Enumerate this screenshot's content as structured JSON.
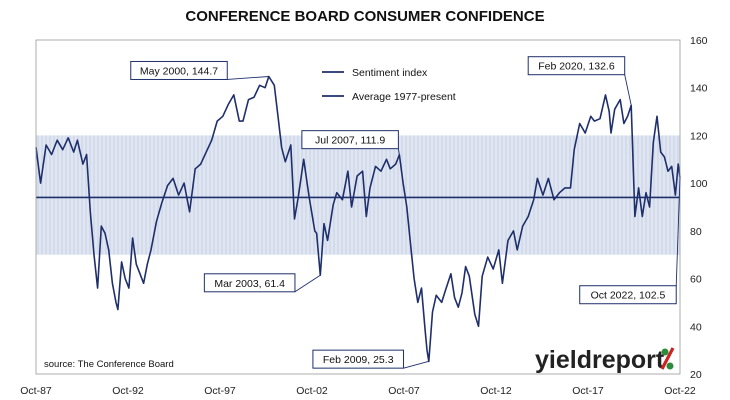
{
  "chart_data": {
    "type": "line",
    "title": "CONFERENCE BOARD CONSUMER CONFIDENCE",
    "ylim": [
      20,
      160
    ],
    "yticks": [
      20,
      40,
      60,
      80,
      100,
      120,
      140,
      160
    ],
    "x_range": [
      "1987-10",
      "2022-10"
    ],
    "xticks": [
      {
        "label": "Oct-87",
        "date": 1987.75
      },
      {
        "label": "Oct-92",
        "date": 1992.75
      },
      {
        "label": "Oct-97",
        "date": 1997.75
      },
      {
        "label": "Oct-02",
        "date": 2002.75
      },
      {
        "label": "Oct-07",
        "date": 2007.75
      },
      {
        "label": "Oct-12",
        "date": 2012.75
      },
      {
        "label": "Oct-17",
        "date": 2017.75
      },
      {
        "label": "Oct-22",
        "date": 2022.75
      }
    ],
    "band": {
      "low": 70,
      "high": 120,
      "color": "#dfe6f2"
    },
    "series": [
      {
        "name": "Sentiment index",
        "color": "#1f2f6b",
        "points": [
          [
            1987.75,
            115
          ],
          [
            1988.0,
            100
          ],
          [
            1988.3,
            116
          ],
          [
            1988.6,
            112
          ],
          [
            1988.9,
            118
          ],
          [
            1989.2,
            114
          ],
          [
            1989.5,
            119
          ],
          [
            1989.8,
            113
          ],
          [
            1990.0,
            118
          ],
          [
            1990.3,
            108
          ],
          [
            1990.5,
            112
          ],
          [
            1990.7,
            88
          ],
          [
            1990.9,
            70
          ],
          [
            1991.1,
            56
          ],
          [
            1991.3,
            82
          ],
          [
            1991.5,
            79
          ],
          [
            1991.7,
            72
          ],
          [
            1991.9,
            58
          ],
          [
            1992.1,
            50
          ],
          [
            1992.2,
            47
          ],
          [
            1992.4,
            67
          ],
          [
            1992.6,
            60
          ],
          [
            1992.8,
            56
          ],
          [
            1993.0,
            77
          ],
          [
            1993.2,
            66
          ],
          [
            1993.4,
            62
          ],
          [
            1993.6,
            58
          ],
          [
            1993.8,
            66
          ],
          [
            1994.0,
            72
          ],
          [
            1994.3,
            84
          ],
          [
            1994.6,
            92
          ],
          [
            1994.9,
            99
          ],
          [
            1995.2,
            102
          ],
          [
            1995.5,
            95
          ],
          [
            1995.8,
            100
          ],
          [
            1996.1,
            88
          ],
          [
            1996.4,
            106
          ],
          [
            1996.7,
            108
          ],
          [
            1997.0,
            113
          ],
          [
            1997.3,
            118
          ],
          [
            1997.6,
            126
          ],
          [
            1997.9,
            128
          ],
          [
            1998.2,
            133
          ],
          [
            1998.5,
            137
          ],
          [
            1998.8,
            126
          ],
          [
            1999.0,
            126
          ],
          [
            1999.3,
            135
          ],
          [
            1999.6,
            136
          ],
          [
            1999.9,
            141
          ],
          [
            2000.2,
            140
          ],
          [
            2000.4,
            144.7
          ],
          [
            2000.7,
            141
          ],
          [
            2000.9,
            128
          ],
          [
            2001.1,
            115
          ],
          [
            2001.3,
            109
          ],
          [
            2001.6,
            116
          ],
          [
            2001.8,
            85
          ],
          [
            2002.0,
            94
          ],
          [
            2002.3,
            110
          ],
          [
            2002.6,
            94
          ],
          [
            2002.9,
            80
          ],
          [
            2003.0,
            79
          ],
          [
            2003.2,
            61.4
          ],
          [
            2003.4,
            83
          ],
          [
            2003.6,
            76
          ],
          [
            2003.9,
            91
          ],
          [
            2004.1,
            96
          ],
          [
            2004.4,
            93
          ],
          [
            2004.7,
            105
          ],
          [
            2004.9,
            90
          ],
          [
            2005.2,
            103
          ],
          [
            2005.5,
            105
          ],
          [
            2005.7,
            86
          ],
          [
            2005.9,
            98
          ],
          [
            2006.2,
            107
          ],
          [
            2006.5,
            105
          ],
          [
            2006.8,
            110
          ],
          [
            2007.0,
            106
          ],
          [
            2007.3,
            108
          ],
          [
            2007.5,
            111.9
          ],
          [
            2007.7,
            100
          ],
          [
            2007.9,
            90
          ],
          [
            2008.1,
            75
          ],
          [
            2008.3,
            60
          ],
          [
            2008.5,
            50
          ],
          [
            2008.7,
            56
          ],
          [
            2008.9,
            38
          ],
          [
            2009.0,
            30
          ],
          [
            2009.1,
            25.3
          ],
          [
            2009.3,
            46
          ],
          [
            2009.5,
            53
          ],
          [
            2009.8,
            50
          ],
          [
            2010.0,
            55
          ],
          [
            2010.3,
            62
          ],
          [
            2010.5,
            52
          ],
          [
            2010.7,
            48
          ],
          [
            2010.9,
            54
          ],
          [
            2011.1,
            65
          ],
          [
            2011.3,
            61
          ],
          [
            2011.6,
            45
          ],
          [
            2011.8,
            40
          ],
          [
            2012.0,
            61
          ],
          [
            2012.3,
            69
          ],
          [
            2012.6,
            64
          ],
          [
            2012.9,
            72
          ],
          [
            2013.1,
            58
          ],
          [
            2013.4,
            76
          ],
          [
            2013.7,
            80
          ],
          [
            2013.9,
            72
          ],
          [
            2014.2,
            82
          ],
          [
            2014.5,
            86
          ],
          [
            2014.8,
            93
          ],
          [
            2015.0,
            102
          ],
          [
            2015.3,
            95
          ],
          [
            2015.6,
            102
          ],
          [
            2015.9,
            93
          ],
          [
            2016.2,
            96
          ],
          [
            2016.5,
            98
          ],
          [
            2016.8,
            98
          ],
          [
            2017.0,
            114
          ],
          [
            2017.3,
            125
          ],
          [
            2017.6,
            121
          ],
          [
            2017.9,
            128
          ],
          [
            2018.1,
            126
          ],
          [
            2018.4,
            127
          ],
          [
            2018.7,
            137
          ],
          [
            2018.9,
            130
          ],
          [
            2019.0,
            121
          ],
          [
            2019.2,
            131
          ],
          [
            2019.5,
            135
          ],
          [
            2019.7,
            125
          ],
          [
            2019.9,
            128
          ],
          [
            2020.1,
            132.6
          ],
          [
            2020.3,
            86
          ],
          [
            2020.5,
            98
          ],
          [
            2020.7,
            86
          ],
          [
            2020.9,
            96
          ],
          [
            2021.1,
            90
          ],
          [
            2021.3,
            117
          ],
          [
            2021.5,
            128
          ],
          [
            2021.7,
            113
          ],
          [
            2021.9,
            111
          ],
          [
            2022.1,
            105
          ],
          [
            2022.3,
            107
          ],
          [
            2022.5,
            95
          ],
          [
            2022.65,
            108
          ],
          [
            2022.75,
            102.5
          ]
        ]
      },
      {
        "name": "Average 1977-present",
        "color": "#1f2f6b",
        "value": 94
      }
    ],
    "annotations": [
      {
        "label": "May 2000, 144.7",
        "x": 2000.4,
        "y": 144.7,
        "box_x": 1992.9,
        "box_y": 151,
        "box_w": 66
      },
      {
        "label": "Jul 2007, 111.9",
        "x": 2007.5,
        "y": 111.9,
        "box_x": 2002.2,
        "box_y": 122,
        "box_w": 66
      },
      {
        "label": "Feb 2020, 132.6",
        "x": 2020.1,
        "y": 132.6,
        "box_x": 2014.5,
        "box_y": 153,
        "box_w": 66
      },
      {
        "label": "Mar 2003, 61.4",
        "x": 2003.2,
        "y": 61.4,
        "box_x": 1996.9,
        "box_y": 62,
        "box_w": 62
      },
      {
        "label": "Feb 2009, 25.3",
        "x": 2009.1,
        "y": 25.3,
        "box_x": 2002.8,
        "box_y": 30,
        "box_w": 62
      },
      {
        "label": "Oct 2022, 102.5",
        "x": 2022.75,
        "y": 102.5,
        "box_x": 2017.3,
        "box_y": 57,
        "box_w": 66
      }
    ],
    "legend_position": "top-center"
  },
  "source": "source: The Conference Board",
  "logo": {
    "text": "yieldreport",
    "symbol": "%"
  }
}
